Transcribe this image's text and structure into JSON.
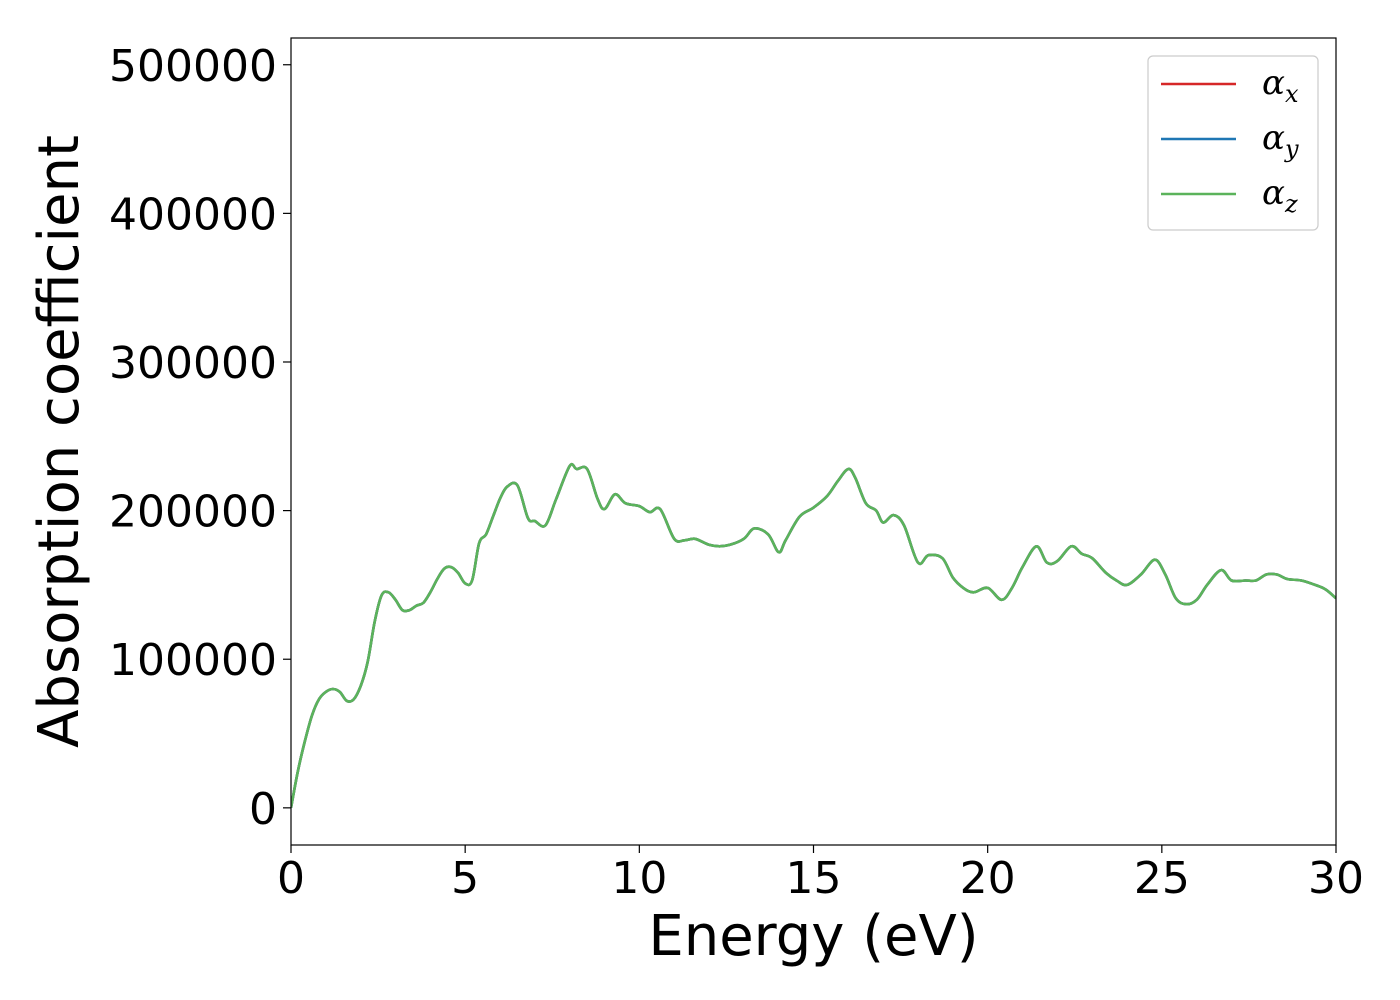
{
  "chart_data": {
    "type": "line",
    "xlabel": "Energy (eV)",
    "ylabel": "Absorption coefficient",
    "xlim": [
      0,
      30
    ],
    "ylim": [
      -25000,
      518000
    ],
    "xticks": [
      0,
      5,
      10,
      15,
      20,
      25,
      30
    ],
    "yticks": [
      0,
      100000,
      200000,
      300000,
      400000,
      500000
    ],
    "xtick_labels": [
      "0",
      "5",
      "10",
      "15",
      "20",
      "25",
      "30"
    ],
    "ytick_labels": [
      "0",
      "100000",
      "200000",
      "300000",
      "400000",
      "500000"
    ],
    "grid": false,
    "legend_position": "top-right",
    "x": [
      0,
      0.2,
      0.4,
      0.6,
      0.8,
      1.0,
      1.2,
      1.4,
      1.6,
      1.8,
      2.0,
      2.2,
      2.4,
      2.6,
      2.8,
      3.0,
      3.2,
      3.4,
      3.6,
      3.8,
      4.0,
      4.2,
      4.4,
      4.6,
      4.8,
      5.0,
      5.2,
      5.4,
      5.6,
      5.8,
      6.0,
      6.2,
      6.5,
      6.8,
      7.0,
      7.3,
      7.6,
      8.0,
      8.2,
      8.5,
      8.8,
      9.0,
      9.3,
      9.6,
      10.0,
      10.3,
      10.6,
      11.0,
      11.3,
      11.6,
      12.0,
      12.3,
      12.6,
      13.0,
      13.3,
      13.7,
      14.0,
      14.2,
      14.6,
      15.0,
      15.4,
      15.7,
      16.0,
      16.2,
      16.5,
      16.8,
      17.0,
      17.3,
      17.6,
      18.0,
      18.3,
      18.7,
      19.0,
      19.3,
      19.6,
      20.0,
      20.4,
      20.7,
      21.0,
      21.4,
      21.7,
      22.0,
      22.4,
      22.7,
      23.0,
      23.4,
      23.7,
      24.0,
      24.4,
      24.8,
      25.1,
      25.4,
      25.7,
      26.0,
      26.3,
      26.7,
      27.0,
      27.4,
      27.7,
      28.0,
      28.3,
      28.6,
      29.0,
      29.4,
      29.7,
      30.0
    ],
    "series": [
      {
        "name": "αx",
        "symbol": "α",
        "subscript": "x",
        "color": "#d62728",
        "values": [
          0,
          25000,
          45000,
          62000,
          73000,
          78000,
          80000,
          78000,
          72000,
          73000,
          82000,
          98000,
          125000,
          143000,
          145000,
          140000,
          133000,
          133000,
          136000,
          138000,
          145000,
          154000,
          161000,
          162000,
          158000,
          151000,
          153000,
          178000,
          184000,
          196000,
          208000,
          216000,
          217000,
          195000,
          193000,
          190000,
          207000,
          230000,
          228000,
          228000,
          208000,
          201000,
          211000,
          205000,
          203000,
          199000,
          201000,
          181000,
          180000,
          181000,
          177000,
          176000,
          177000,
          181000,
          188000,
          184000,
          172000,
          180000,
          196000,
          202000,
          210000,
          220000,
          228000,
          222000,
          205000,
          200000,
          192000,
          197000,
          190000,
          165000,
          170000,
          168000,
          155000,
          148000,
          145000,
          148000,
          140000,
          148000,
          162000,
          176000,
          165000,
          166000,
          176000,
          171000,
          168000,
          158000,
          153000,
          150000,
          157000,
          167000,
          157000,
          141000,
          137000,
          140000,
          150000,
          160000,
          153000,
          153000,
          153000,
          157000,
          157000,
          154000,
          153000,
          150000,
          147000,
          141000
        ]
      },
      {
        "name": "αy",
        "symbol": "α",
        "subscript": "y",
        "color": "#1f77b4",
        "values": [
          0,
          25000,
          45000,
          62000,
          73000,
          78000,
          80000,
          78000,
          72000,
          73000,
          82000,
          98000,
          125000,
          143000,
          145000,
          140000,
          133000,
          133000,
          136000,
          138000,
          145000,
          154000,
          161000,
          162000,
          158000,
          151000,
          153000,
          178000,
          184000,
          196000,
          208000,
          216000,
          217000,
          195000,
          193000,
          190000,
          207000,
          230000,
          228000,
          228000,
          208000,
          201000,
          211000,
          205000,
          203000,
          199000,
          201000,
          181000,
          180000,
          181000,
          177000,
          176000,
          177000,
          181000,
          188000,
          184000,
          172000,
          180000,
          196000,
          202000,
          210000,
          220000,
          228000,
          222000,
          205000,
          200000,
          192000,
          197000,
          190000,
          165000,
          170000,
          168000,
          155000,
          148000,
          145000,
          148000,
          140000,
          148000,
          162000,
          176000,
          165000,
          166000,
          176000,
          171000,
          168000,
          158000,
          153000,
          150000,
          157000,
          167000,
          157000,
          141000,
          137000,
          140000,
          150000,
          160000,
          153000,
          153000,
          153000,
          157000,
          157000,
          154000,
          153000,
          150000,
          147000,
          141000
        ]
      },
      {
        "name": "αz",
        "symbol": "α",
        "subscript": "z",
        "color": "#5bb35b",
        "values": [
          0,
          25000,
          45000,
          62000,
          73000,
          78000,
          80000,
          78000,
          72000,
          73000,
          82000,
          98000,
          125000,
          143000,
          145000,
          140000,
          133000,
          133000,
          136000,
          138000,
          145000,
          154000,
          161000,
          162000,
          158000,
          151000,
          153000,
          178000,
          184000,
          196000,
          208000,
          216000,
          217000,
          195000,
          193000,
          190000,
          207000,
          230000,
          228000,
          228000,
          208000,
          201000,
          211000,
          205000,
          203000,
          199000,
          201000,
          181000,
          180000,
          181000,
          177000,
          176000,
          177000,
          181000,
          188000,
          184000,
          172000,
          180000,
          196000,
          202000,
          210000,
          220000,
          228000,
          222000,
          205000,
          200000,
          192000,
          197000,
          190000,
          165000,
          170000,
          168000,
          155000,
          148000,
          145000,
          148000,
          140000,
          148000,
          162000,
          176000,
          165000,
          166000,
          176000,
          171000,
          168000,
          158000,
          153000,
          150000,
          157000,
          167000,
          157000,
          141000,
          137000,
          140000,
          150000,
          160000,
          153000,
          153000,
          153000,
          157000,
          157000,
          154000,
          153000,
          150000,
          147000,
          141000
        ]
      }
    ]
  }
}
